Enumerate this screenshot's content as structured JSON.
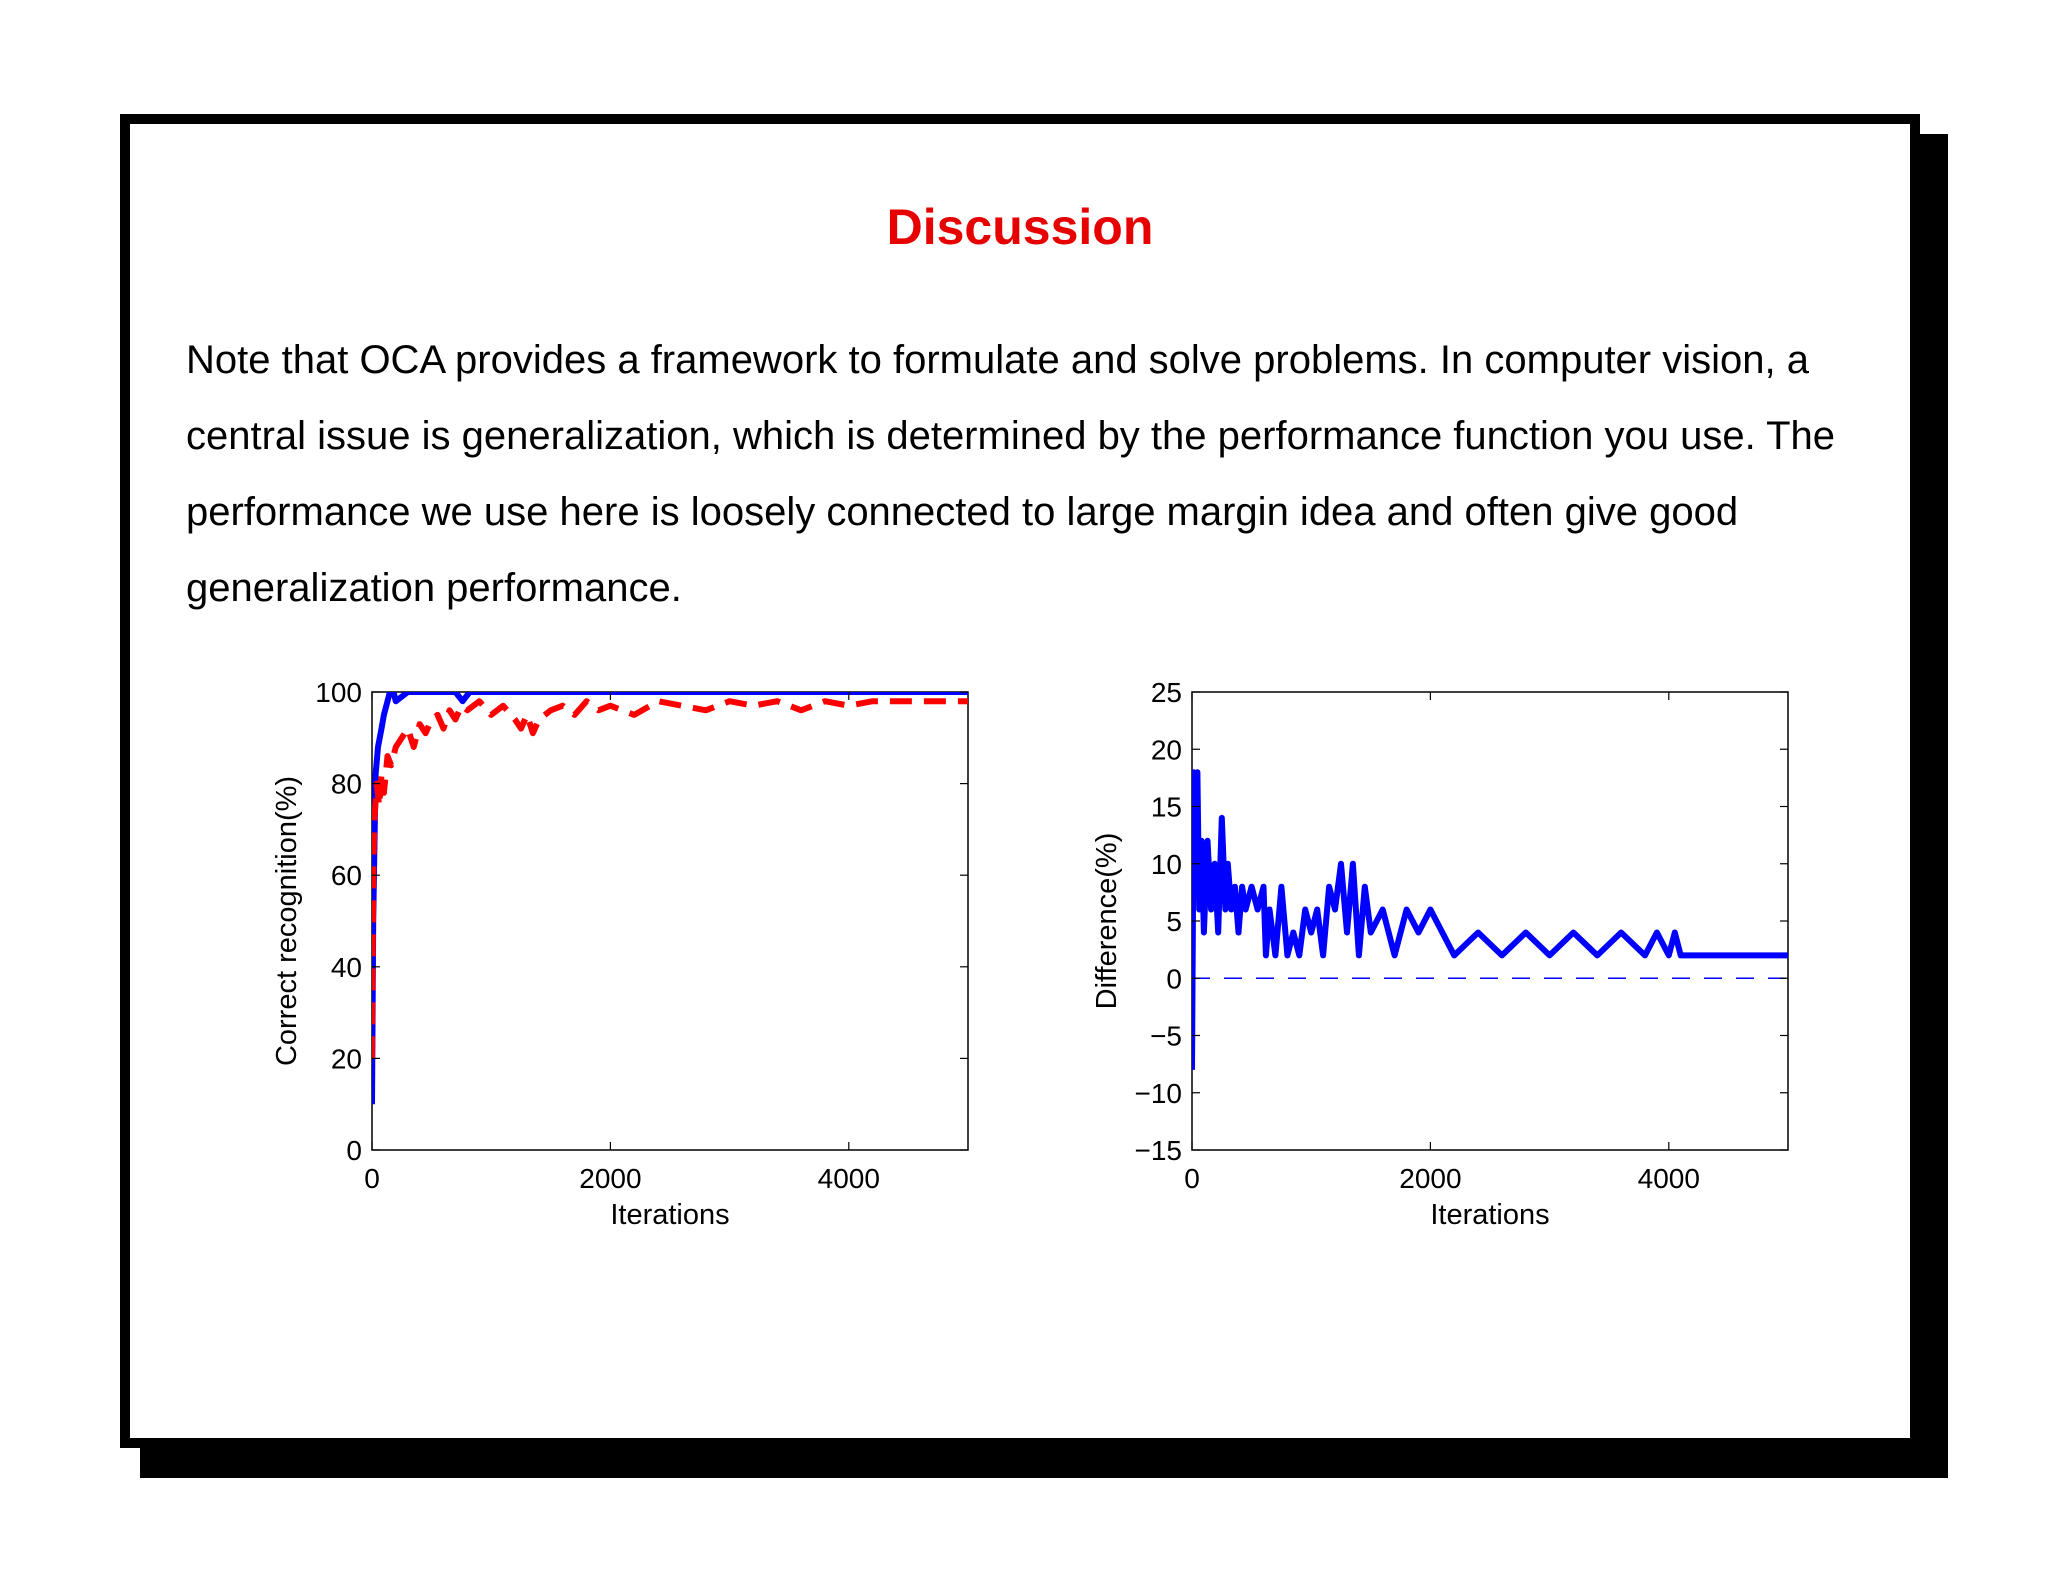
{
  "slide": {
    "title": "Discussion",
    "body": "Note that OCA provides a framework to formulate and solve problems.  In computer vision, a central issue is generalization, which is determined by the performance function you use.  The performance we use here is loosely connected to large margin idea and often give good generalization performance."
  },
  "chart_data": [
    {
      "type": "line",
      "xlabel": "Iterations",
      "ylabel": "Correct recognition(%)",
      "xlim": [
        0,
        5000
      ],
      "ylim": [
        0,
        100
      ],
      "xticks": [
        "0",
        "2000",
        "4000"
      ],
      "yticks": [
        "0",
        "20",
        "40",
        "60",
        "80",
        "100"
      ],
      "grid": false,
      "colors": [
        "#0000ff",
        "#ff0000"
      ],
      "series": [
        {
          "style": "solid-thick",
          "x": [
            0,
            10,
            30,
            50,
            80,
            100,
            130,
            150,
            180,
            200,
            250,
            300,
            350,
            400,
            700,
            760,
            820,
            5000
          ],
          "y": [
            10,
            50,
            82,
            88,
            92,
            95,
            98,
            100,
            100,
            98,
            99,
            100,
            100,
            100,
            100,
            98,
            100,
            100
          ]
        },
        {
          "style": "dashed-thick",
          "x": [
            0,
            10,
            20,
            40,
            60,
            80,
            100,
            130,
            160,
            200,
            250,
            300,
            350,
            400,
            450,
            500,
            550,
            600,
            650,
            700,
            750,
            800,
            900,
            1000,
            1100,
            1200,
            1250,
            1300,
            1350,
            1400,
            1500,
            1600,
            1700,
            1800,
            1900,
            2000,
            2200,
            2400,
            2600,
            2800,
            3000,
            3200,
            3400,
            3600,
            3800,
            4000,
            4200,
            5000
          ],
          "y": [
            20,
            60,
            72,
            80,
            75,
            82,
            78,
            86,
            84,
            88,
            90,
            92,
            88,
            93,
            91,
            94,
            95,
            92,
            96,
            94,
            97,
            96,
            98,
            95,
            97,
            94,
            92,
            95,
            91,
            94,
            96,
            97,
            95,
            98,
            96,
            97,
            95,
            98,
            97,
            96,
            98,
            97,
            98,
            96,
            98,
            97,
            98,
            98
          ]
        }
      ]
    },
    {
      "type": "line",
      "xlabel": "Iterations",
      "ylabel": "Difference(%)",
      "xlim": [
        0,
        5000
      ],
      "ylim": [
        -15,
        25
      ],
      "xticks": [
        "0",
        "2000",
        "4000"
      ],
      "yticks": [
        "−15",
        "−10",
        "−5",
        "0",
        "5",
        "10",
        "15",
        "20",
        "25"
      ],
      "grid": false,
      "colors": [
        "#0000ff"
      ],
      "series": [
        {
          "style": "solid-thick",
          "x": [
            0,
            15,
            30,
            45,
            60,
            80,
            100,
            130,
            160,
            190,
            220,
            250,
            280,
            300,
            330,
            360,
            390,
            420,
            450,
            500,
            550,
            600,
            620,
            650,
            700,
            750,
            800,
            850,
            900,
            950,
            1000,
            1050,
            1100,
            1150,
            1200,
            1250,
            1300,
            1350,
            1400,
            1450,
            1500,
            1600,
            1700,
            1800,
            1900,
            2000,
            2200,
            2400,
            2600,
            2800,
            3000,
            3200,
            3400,
            3600,
            3800,
            3900,
            4000,
            4050,
            4100,
            5000
          ],
          "y": [
            -8,
            18,
            10,
            18,
            6,
            12,
            4,
            12,
            6,
            10,
            4,
            14,
            6,
            10,
            6,
            8,
            4,
            8,
            6,
            8,
            6,
            8,
            2,
            6,
            2,
            8,
            2,
            4,
            2,
            6,
            4,
            6,
            2,
            8,
            6,
            10,
            4,
            10,
            2,
            8,
            4,
            6,
            2,
            6,
            4,
            6,
            2,
            4,
            2,
            4,
            2,
            4,
            2,
            4,
            2,
            4,
            2,
            4,
            2,
            2
          ]
        },
        {
          "style": "dashed-thin",
          "x": [
            0,
            5000
          ],
          "y": [
            0,
            0
          ]
        }
      ]
    }
  ]
}
